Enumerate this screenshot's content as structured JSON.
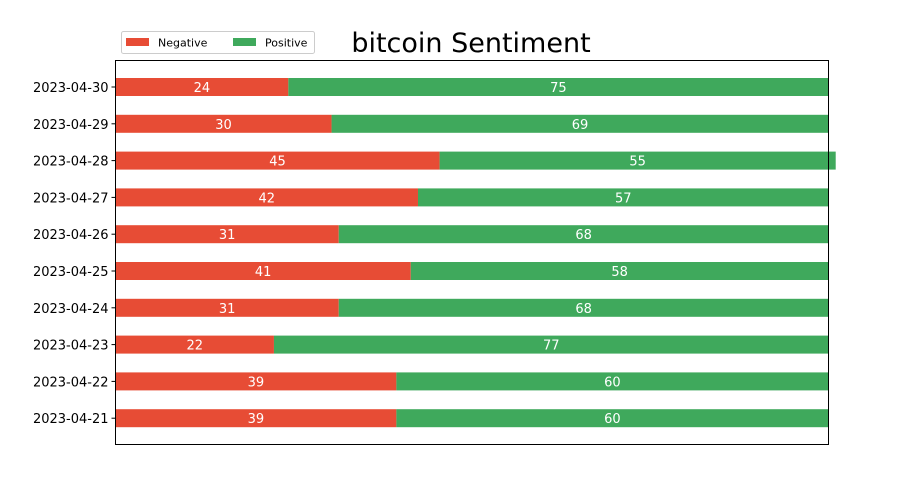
{
  "chart_data": {
    "type": "bar",
    "orientation": "horizontal",
    "stacked": true,
    "title": "bitcoin Sentiment",
    "xlabel": "",
    "ylabel": "",
    "xlim": [
      0,
      99
    ],
    "grid": false,
    "legend_placement": "top-left",
    "categories": [
      "2023-04-30",
      "2023-04-29",
      "2023-04-28",
      "2023-04-27",
      "2023-04-26",
      "2023-04-25",
      "2023-04-24",
      "2023-04-23",
      "2023-04-22",
      "2023-04-21"
    ],
    "series": [
      {
        "name": "Negative",
        "color": "#e74c35",
        "values": [
          24,
          30,
          45,
          42,
          31,
          41,
          31,
          22,
          39,
          39
        ]
      },
      {
        "name": "Positive",
        "color": "#3fa95c",
        "values": [
          75,
          69,
          55,
          57,
          68,
          58,
          68,
          77,
          60,
          60
        ]
      }
    ]
  }
}
